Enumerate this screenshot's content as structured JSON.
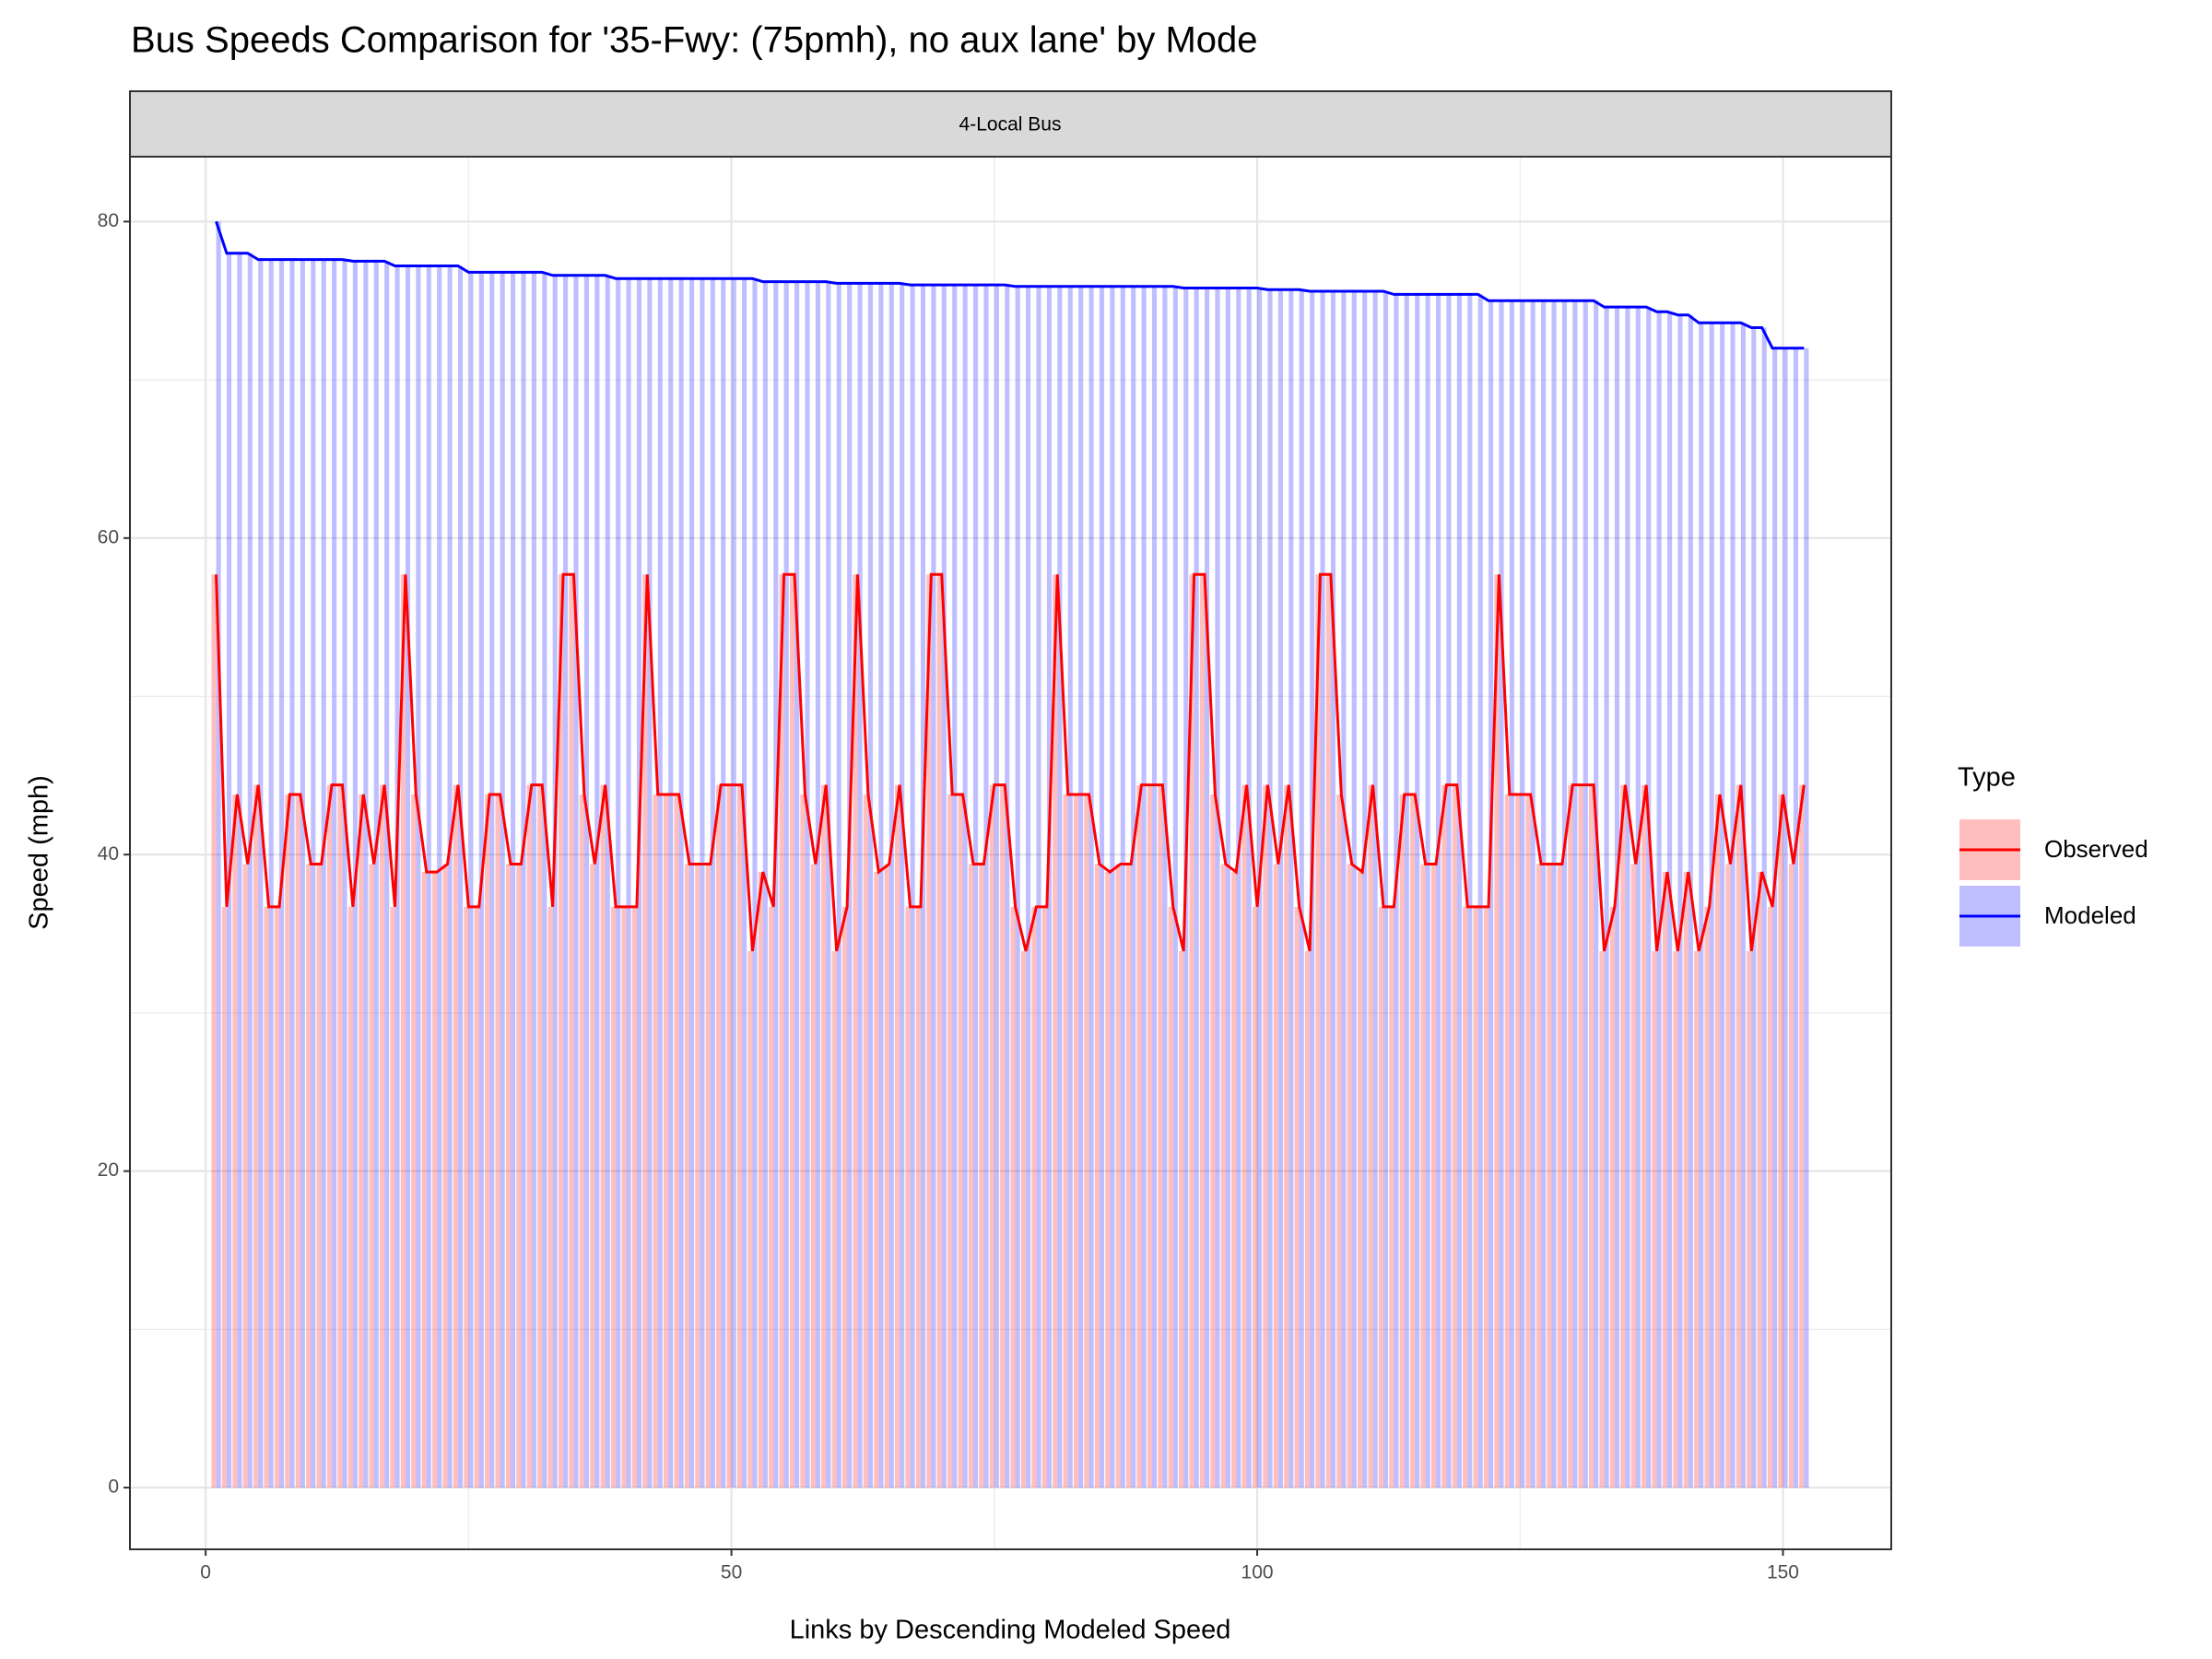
{
  "chart_data": {
    "type": "barline",
    "title": "Bus Speeds Comparison for '35-Fwy: (75pmh), no aux lane' by Mode",
    "strip": "4-Local Bus",
    "x_label": "Links by Descending Modeled Speed",
    "y_label": "Speed (mph)",
    "legend_title": "Type",
    "legend_position": "right",
    "grid": true,
    "xlim": [
      -7.2,
      160.3
    ],
    "ylim": [
      -3.9,
      84.1
    ],
    "xticks": [
      0,
      50,
      100,
      150
    ],
    "yticks": [
      0,
      20,
      40,
      60,
      80
    ],
    "x_minor_ticks": [
      25,
      75,
      125
    ],
    "y_minor_ticks": [
      10,
      30,
      50,
      70
    ],
    "x": [
      1,
      2,
      3,
      4,
      5,
      6,
      7,
      8,
      9,
      10,
      11,
      12,
      13,
      14,
      15,
      16,
      17,
      18,
      19,
      20,
      21,
      22,
      23,
      24,
      25,
      26,
      27,
      28,
      29,
      30,
      31,
      32,
      33,
      34,
      35,
      36,
      37,
      38,
      39,
      40,
      41,
      42,
      43,
      44,
      45,
      46,
      47,
      48,
      49,
      50,
      51,
      52,
      53,
      54,
      55,
      56,
      57,
      58,
      59,
      60,
      61,
      62,
      63,
      64,
      65,
      66,
      67,
      68,
      69,
      70,
      71,
      72,
      73,
      74,
      75,
      76,
      77,
      78,
      79,
      80,
      81,
      82,
      83,
      84,
      85,
      86,
      87,
      88,
      89,
      90,
      91,
      92,
      93,
      94,
      95,
      96,
      97,
      98,
      99,
      100,
      101,
      102,
      103,
      104,
      105,
      106,
      107,
      108,
      109,
      110,
      111,
      112,
      113,
      114,
      115,
      116,
      117,
      118,
      119,
      120,
      121,
      122,
      123,
      124,
      125,
      126,
      127,
      128,
      129,
      130,
      131,
      132,
      133,
      134,
      135,
      136,
      137,
      138,
      139,
      140,
      141,
      142,
      143,
      144,
      145,
      146,
      147,
      148,
      149,
      150,
      151,
      152
    ],
    "series": [
      {
        "name": "Observed",
        "color": "#ff0000",
        "values": [
          57.7,
          36.7,
          43.8,
          39.4,
          44.4,
          36.7,
          36.7,
          43.8,
          43.8,
          39.4,
          39.4,
          44.4,
          44.4,
          36.7,
          43.8,
          39.4,
          44.4,
          36.7,
          57.7,
          43.8,
          38.9,
          38.9,
          39.4,
          44.4,
          36.7,
          36.7,
          43.8,
          43.8,
          39.4,
          39.4,
          44.4,
          44.4,
          36.7,
          57.7,
          57.7,
          43.8,
          39.4,
          44.4,
          36.7,
          36.7,
          36.7,
          57.7,
          43.8,
          43.8,
          43.8,
          39.4,
          39.4,
          39.4,
          44.4,
          44.4,
          44.4,
          33.9,
          38.9,
          36.7,
          57.7,
          57.7,
          43.8,
          39.4,
          44.4,
          33.9,
          36.7,
          57.7,
          43.8,
          38.9,
          39.4,
          44.4,
          36.7,
          36.7,
          57.7,
          57.7,
          43.8,
          43.8,
          39.4,
          39.4,
          44.4,
          44.4,
          36.7,
          33.9,
          36.7,
          36.7,
          57.7,
          43.8,
          43.8,
          43.8,
          39.4,
          38.9,
          39.4,
          39.4,
          44.4,
          44.4,
          44.4,
          36.7,
          33.9,
          57.7,
          57.7,
          43.8,
          39.4,
          38.9,
          44.4,
          36.7,
          44.4,
          39.4,
          44.4,
          36.7,
          33.9,
          57.7,
          57.7,
          43.8,
          39.4,
          38.9,
          44.4,
          36.7,
          36.7,
          43.8,
          43.8,
          39.4,
          39.4,
          44.4,
          44.4,
          36.7,
          36.7,
          36.7,
          57.7,
          43.8,
          43.8,
          43.8,
          39.4,
          39.4,
          39.4,
          44.4,
          44.4,
          44.4,
          33.9,
          36.7,
          44.4,
          39.4,
          44.4,
          33.9,
          38.9,
          33.9,
          38.9,
          33.9,
          36.7,
          43.8,
          39.4,
          44.4,
          33.9,
          38.9,
          36.7,
          43.8,
          39.4,
          44.4
        ]
      },
      {
        "name": "Modeled",
        "color": "#0000ff",
        "values": [
          80,
          78,
          78,
          78,
          77.6,
          77.6,
          77.6,
          77.6,
          77.6,
          77.6,
          77.6,
          77.6,
          77.6,
          77.5,
          77.5,
          77.5,
          77.5,
          77.2,
          77.2,
          77.2,
          77.2,
          77.2,
          77.2,
          77.2,
          76.8,
          76.8,
          76.8,
          76.8,
          76.8,
          76.8,
          76.8,
          76.8,
          76.6,
          76.6,
          76.6,
          76.6,
          76.6,
          76.6,
          76.4,
          76.4,
          76.4,
          76.4,
          76.4,
          76.4,
          76.4,
          76.4,
          76.4,
          76.4,
          76.4,
          76.4,
          76.4,
          76.4,
          76.2,
          76.2,
          76.2,
          76.2,
          76.2,
          76.2,
          76.2,
          76.1,
          76.1,
          76.1,
          76.1,
          76.1,
          76.1,
          76.1,
          76,
          76,
          76,
          76,
          76,
          76,
          76,
          76,
          76,
          76,
          75.9,
          75.9,
          75.9,
          75.9,
          75.9,
          75.9,
          75.9,
          75.9,
          75.9,
          75.9,
          75.9,
          75.9,
          75.9,
          75.9,
          75.9,
          75.9,
          75.8,
          75.8,
          75.8,
          75.8,
          75.8,
          75.8,
          75.8,
          75.8,
          75.7,
          75.7,
          75.7,
          75.7,
          75.6,
          75.6,
          75.6,
          75.6,
          75.6,
          75.6,
          75.6,
          75.6,
          75.4,
          75.4,
          75.4,
          75.4,
          75.4,
          75.4,
          75.4,
          75.4,
          75.4,
          75,
          75,
          75,
          75,
          75,
          75,
          75,
          75,
          75,
          75,
          75,
          74.6,
          74.6,
          74.6,
          74.6,
          74.6,
          74.3,
          74.3,
          74.1,
          74.1,
          73.6,
          73.6,
          73.6,
          73.6,
          73.6,
          73.3,
          73.3,
          72,
          72,
          72,
          72
        ]
      }
    ]
  }
}
